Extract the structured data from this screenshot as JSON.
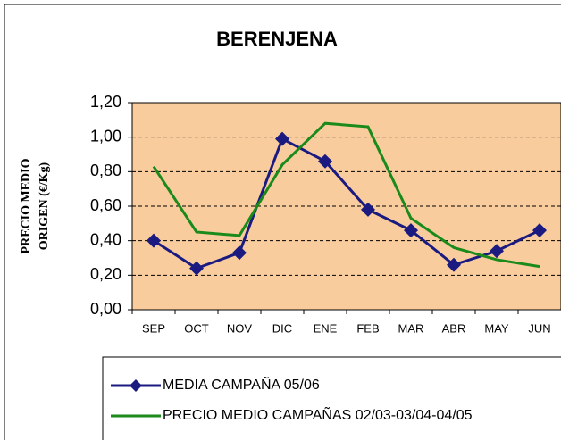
{
  "chart_data": {
    "type": "line",
    "title": "BERENJENA",
    "y_label": [
      "PRECIO MEDIO",
      "ORIGEN (€/Kg)"
    ],
    "categories": [
      "SEP",
      "OCT",
      "NOV",
      "DIC",
      "ENE",
      "FEB",
      "MAR",
      "ABR",
      "MAY",
      "JUN"
    ],
    "series": [
      {
        "name": "MEDIA CAMPAÑA 05/06",
        "color": "#1a1a80",
        "marker": "diamond",
        "values": [
          0.4,
          0.24,
          0.33,
          0.99,
          0.86,
          0.58,
          0.46,
          0.26,
          0.34,
          0.46
        ]
      },
      {
        "name": "PRECIO MEDIO CAMPAÑAS 02/03-03/04-04/05",
        "color": "#1a8a1a",
        "marker": "none",
        "values": [
          0.83,
          0.45,
          0.43,
          0.84,
          1.08,
          1.06,
          0.53,
          0.36,
          0.29,
          0.25
        ]
      }
    ],
    "ylim": [
      0,
      1.2
    ],
    "yticks": [
      {
        "value": 0,
        "label": "0,00"
      },
      {
        "value": 0.2,
        "label": "0,20"
      },
      {
        "value": 0.4,
        "label": "0,40"
      },
      {
        "value": 0.6,
        "label": "0,60"
      },
      {
        "value": 0.8,
        "label": "0,80"
      },
      {
        "value": 1.0,
        "label": "1,00"
      },
      {
        "value": 1.2,
        "label": "1,20"
      }
    ],
    "grid": true,
    "plot_background": "#f9cc9d"
  }
}
